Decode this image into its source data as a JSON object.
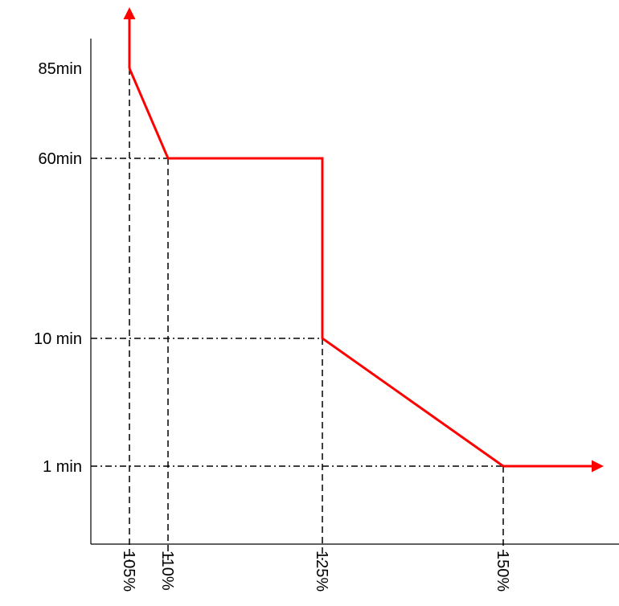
{
  "chart_data": {
    "type": "line",
    "title": "",
    "xlabel": "",
    "ylabel": "",
    "grid": "dashed guide lines at marked points",
    "x_scale": "categorical (non-linear spacing)",
    "y_scale": "non-linear",
    "x_ticks": [
      {
        "value": 105,
        "label": "105%"
      },
      {
        "value": 110,
        "label": "110%"
      },
      {
        "value": 125,
        "label": "125%"
      },
      {
        "value": 150,
        "label": "150%"
      }
    ],
    "y_ticks": [
      {
        "value": 85,
        "label": "85min"
      },
      {
        "value": 60,
        "label": "60min"
      },
      {
        "value": 10,
        "label": "10 min"
      },
      {
        "value": 1,
        "label": "1 min"
      }
    ],
    "series": [
      {
        "color": "#ff0000",
        "points": [
          {
            "x": 105,
            "y": 85
          },
          {
            "x": 110,
            "y": 60
          },
          {
            "x": 125,
            "y": 60
          },
          {
            "x": 125,
            "y": 10
          },
          {
            "x": 150,
            "y": 1
          }
        ],
        "arrow_start": "up",
        "arrow_end": "right"
      }
    ]
  }
}
